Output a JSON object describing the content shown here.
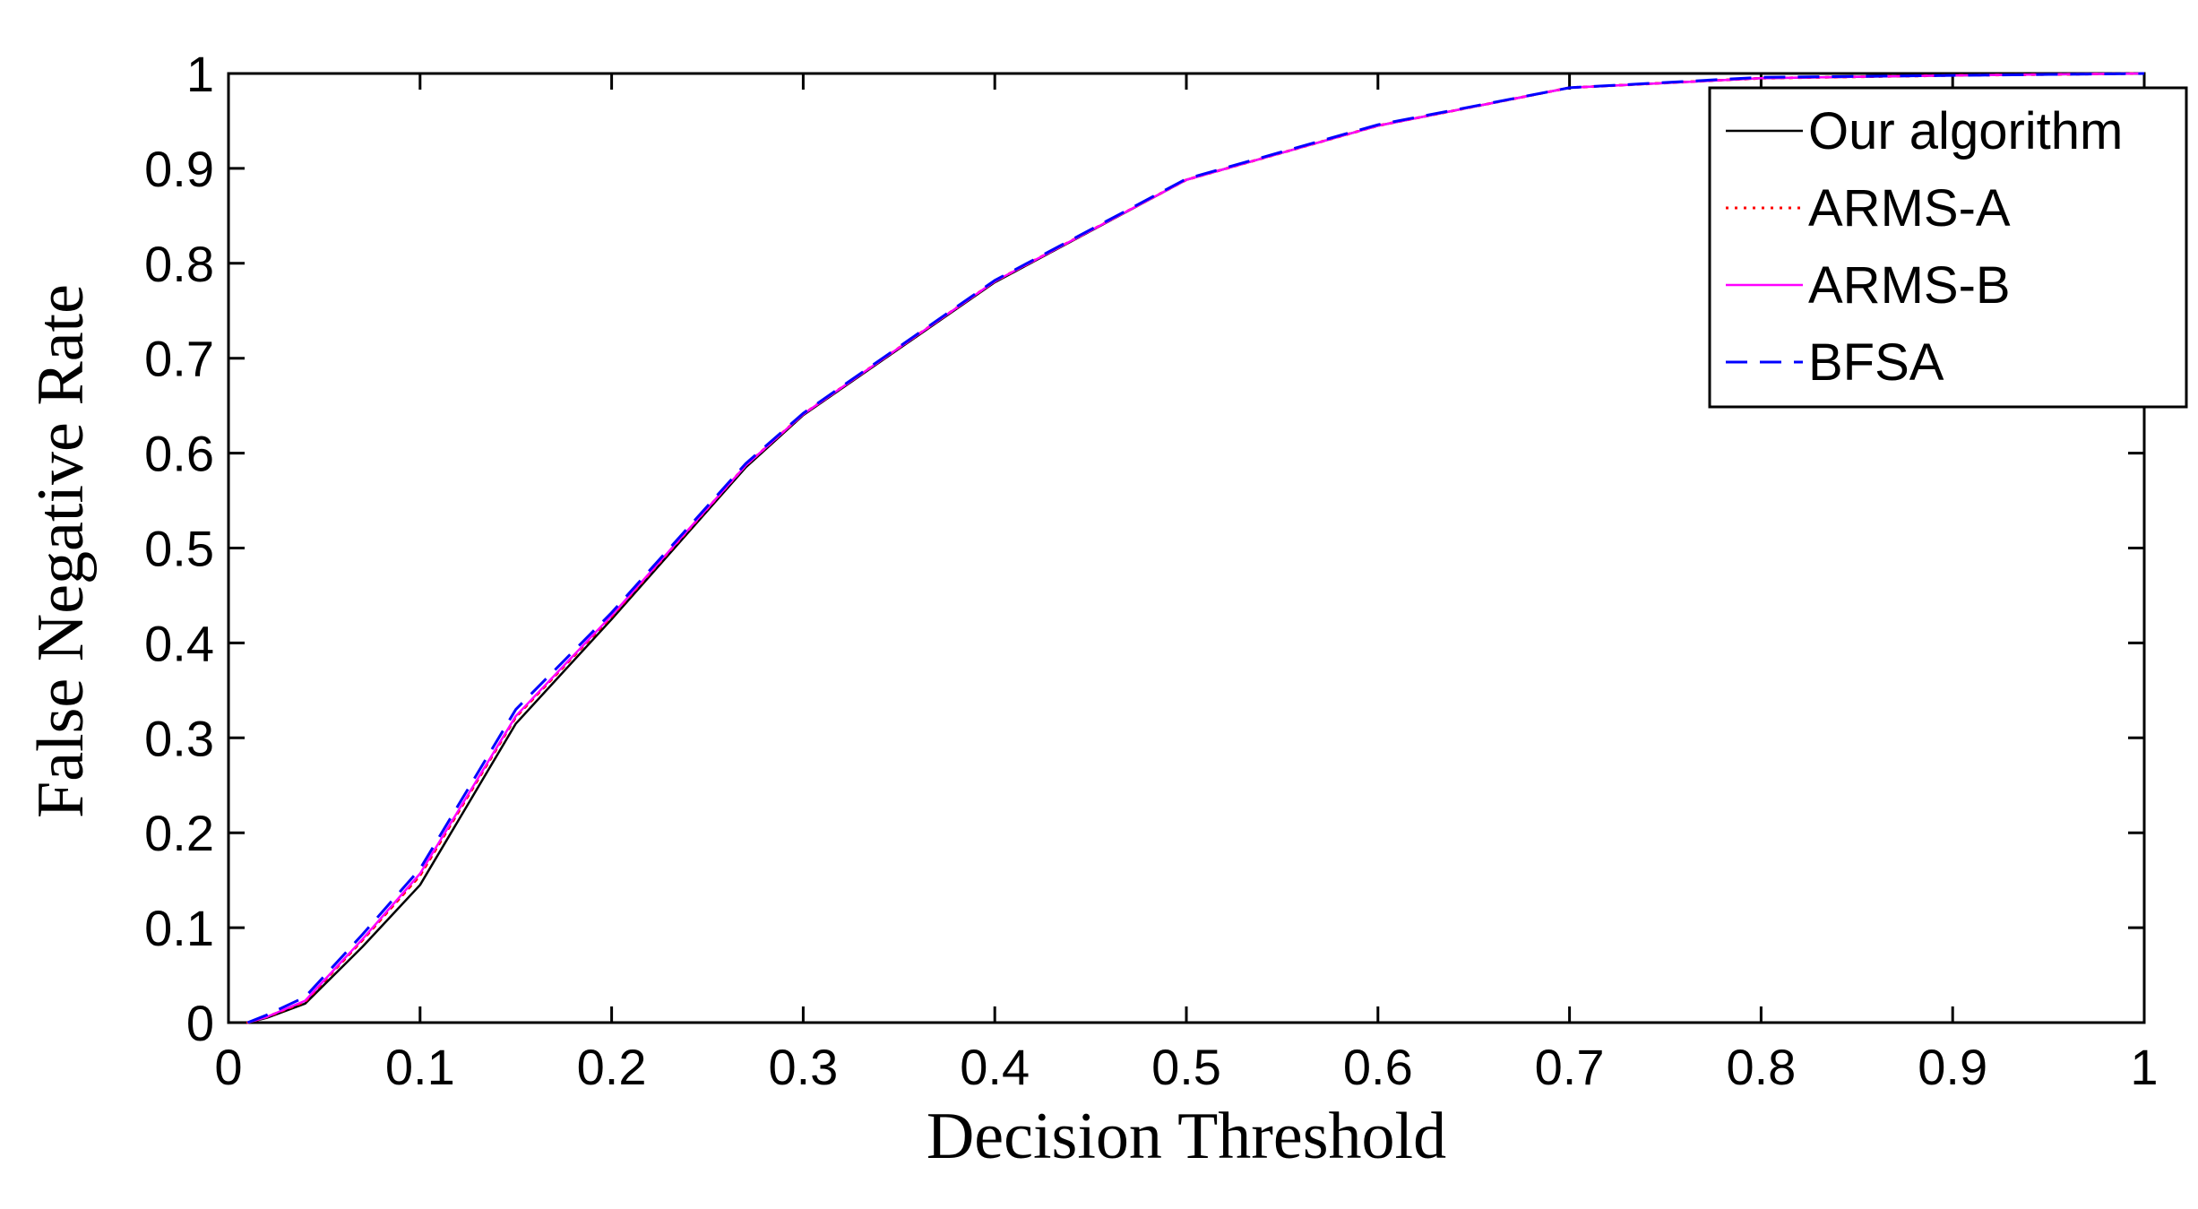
{
  "chart_data": {
    "type": "line",
    "title": "",
    "xlabel": "Decision Threshold",
    "ylabel": "False Negative Rate",
    "xlim": [
      0,
      1
    ],
    "ylim": [
      0,
      1
    ],
    "x_ticks": [
      0,
      0.1,
      0.2,
      0.3,
      0.4,
      0.5,
      0.6,
      0.7,
      0.8,
      0.9,
      1
    ],
    "x_tick_labels": [
      "0",
      "0.1",
      "0.2",
      "0.3",
      "0.4",
      "0.5",
      "0.6",
      "0.7",
      "0.8",
      "0.9",
      "1"
    ],
    "y_ticks": [
      0,
      0.1,
      0.2,
      0.3,
      0.4,
      0.5,
      0.6,
      0.7,
      0.8,
      0.9,
      1
    ],
    "y_tick_labels": [
      "0",
      "0.1",
      "0.2",
      "0.3",
      "0.4",
      "0.5",
      "0.6",
      "0.7",
      "0.8",
      "0.9",
      "1"
    ],
    "grid": false,
    "legend_position": "top-right",
    "series": [
      {
        "name": "Our algorithm",
        "color": "#000000",
        "line_style": "solid",
        "points": [
          [
            0.01,
            0
          ],
          [
            0.02,
            0.005
          ],
          [
            0.04,
            0.02
          ],
          [
            0.07,
            0.08
          ],
          [
            0.1,
            0.145
          ],
          [
            0.15,
            0.315
          ],
          [
            0.2,
            0.425
          ],
          [
            0.27,
            0.585
          ],
          [
            0.3,
            0.64
          ],
          [
            0.4,
            0.78
          ],
          [
            0.5,
            0.888
          ],
          [
            0.6,
            0.945
          ],
          [
            0.7,
            0.985
          ],
          [
            0.8,
            0.995
          ],
          [
            0.9,
            0.998
          ],
          [
            1.0,
            1.0
          ]
        ]
      },
      {
        "name": "ARMS-A",
        "color": "#ff0000",
        "line_style": "dotted",
        "points": [
          [
            0.01,
            0
          ],
          [
            0.02,
            0.006
          ],
          [
            0.04,
            0.022
          ],
          [
            0.07,
            0.087
          ],
          [
            0.1,
            0.155
          ],
          [
            0.15,
            0.322
          ],
          [
            0.2,
            0.428
          ],
          [
            0.27,
            0.587
          ],
          [
            0.3,
            0.641
          ],
          [
            0.4,
            0.781
          ],
          [
            0.5,
            0.888
          ],
          [
            0.6,
            0.945
          ],
          [
            0.7,
            0.985
          ],
          [
            0.8,
            0.995
          ],
          [
            0.9,
            0.998
          ],
          [
            1.0,
            1.0
          ]
        ]
      },
      {
        "name": "ARMS-B",
        "color": "#ff00ff",
        "line_style": "solid",
        "points": [
          [
            0.01,
            0
          ],
          [
            0.02,
            0.006
          ],
          [
            0.04,
            0.023
          ],
          [
            0.07,
            0.088
          ],
          [
            0.1,
            0.157
          ],
          [
            0.15,
            0.323
          ],
          [
            0.2,
            0.429
          ],
          [
            0.27,
            0.587
          ],
          [
            0.3,
            0.641
          ],
          [
            0.4,
            0.781
          ],
          [
            0.5,
            0.888
          ],
          [
            0.6,
            0.945
          ],
          [
            0.7,
            0.985
          ],
          [
            0.8,
            0.995
          ],
          [
            0.9,
            0.998
          ],
          [
            1.0,
            1.0
          ]
        ]
      },
      {
        "name": "BFSA",
        "color": "#0000ff",
        "line_style": "dashed",
        "points": [
          [
            0.01,
            0
          ],
          [
            0.02,
            0.008
          ],
          [
            0.04,
            0.027
          ],
          [
            0.07,
            0.093
          ],
          [
            0.1,
            0.162
          ],
          [
            0.15,
            0.33
          ],
          [
            0.2,
            0.432
          ],
          [
            0.27,
            0.589
          ],
          [
            0.3,
            0.642
          ],
          [
            0.4,
            0.782
          ],
          [
            0.5,
            0.889
          ],
          [
            0.6,
            0.946
          ],
          [
            0.7,
            0.985
          ],
          [
            0.8,
            0.996
          ],
          [
            0.9,
            0.998
          ],
          [
            1.0,
            1.0
          ]
        ]
      }
    ]
  }
}
